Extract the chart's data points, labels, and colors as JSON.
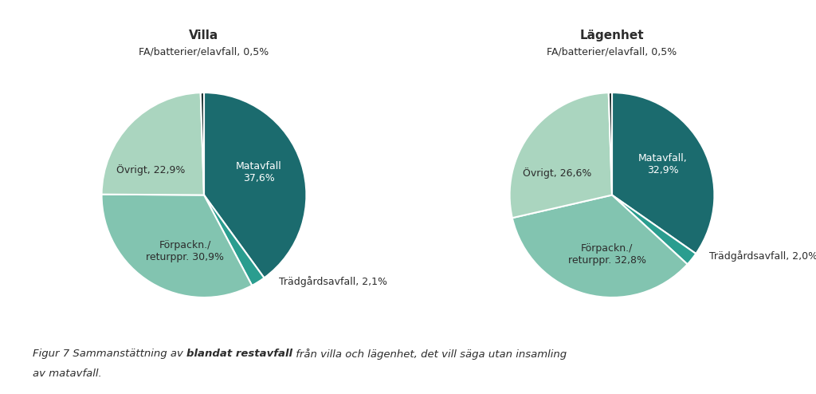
{
  "villa": {
    "title": "Villa",
    "subtitle": "FA/batterier/elavfall, 0,5%",
    "labels_inside": [
      {
        "text": "Matavfall\n37,6%",
        "color": "white"
      },
      {
        "text": "",
        "color": "#2c2c2c"
      },
      {
        "text": "Förpackn./\nreturppr. 30,9%",
        "color": "#2c2c2c"
      },
      {
        "text": "Övrigt, 22,9%",
        "color": "#2c2c2c"
      },
      {
        "text": "",
        "color": "#2c2c2c"
      }
    ],
    "labels_outside": [
      {
        "text": "",
        "side": "right"
      },
      {
        "text": "Trädgårdsavfall, 2,1%",
        "side": "right"
      },
      {
        "text": "",
        "side": "left"
      },
      {
        "text": "",
        "side": "left"
      },
      {
        "text": "",
        "side": "left"
      }
    ],
    "values": [
      37.6,
      2.1,
      30.9,
      22.9,
      0.5
    ],
    "colors": [
      "#1b6b6e",
      "#2a9d8f",
      "#82c4b0",
      "#aad5bf",
      "#1a3030"
    ],
    "startangle": 90
  },
  "lagenhet": {
    "title": "Lägenhet",
    "subtitle": "FA/batterier/elavfall, 0,5%",
    "labels_inside": [
      {
        "text": "Matavfall,\n32,9%",
        "color": "white"
      },
      {
        "text": "",
        "color": "#2c2c2c"
      },
      {
        "text": "Förpackn./\nreturppr. 32,8%",
        "color": "#2c2c2c"
      },
      {
        "text": "Övrigt, 26,6%",
        "color": "#2c2c2c"
      },
      {
        "text": "",
        "color": "#2c2c2c"
      }
    ],
    "labels_outside": [
      {
        "text": "",
        "side": "right"
      },
      {
        "text": "Trädgårdsavfall, 2,0%",
        "side": "right"
      },
      {
        "text": "",
        "side": "left"
      },
      {
        "text": "",
        "side": "left"
      },
      {
        "text": "",
        "side": "left"
      }
    ],
    "values": [
      32.9,
      2.0,
      32.8,
      26.6,
      0.5
    ],
    "colors": [
      "#1b6b6e",
      "#2a9d8f",
      "#82c4b0",
      "#aad5bf",
      "#1a3030"
    ],
    "startangle": 90
  },
  "caption_part1": "Figur 7 Sammanstättning av ",
  "caption_bold": "blandat restavfall",
  "caption_part2": " från villa och lägenhet, det vill säga utan insamling",
  "caption_line2": "av matavfall.",
  "bg_color": "#ffffff",
  "text_color": "#2c2c2c",
  "fontsize_label": 9,
  "fontsize_title": 11,
  "fontsize_subtitle": 9,
  "fontsize_caption": 9.5
}
